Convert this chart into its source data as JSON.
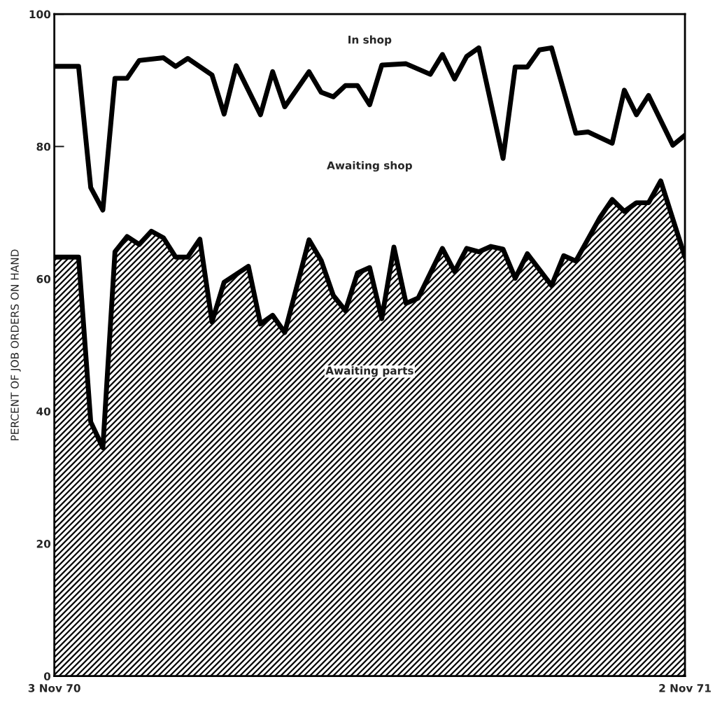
{
  "chart_data": {
    "type": "area",
    "ylabel": "PERCENT OF JOB ORDERS ON HAND",
    "xlim": [
      "1970-11-03",
      "1971-11-02"
    ],
    "xticks": [
      {
        "value": "1970-11-03",
        "label": "3 Nov 70"
      },
      {
        "value": "1971-11-02",
        "label": "2 Nov 71"
      }
    ],
    "ylim": [
      0,
      100
    ],
    "yticks": [
      0,
      20,
      40,
      60,
      80,
      100
    ],
    "grid": false,
    "legend": false,
    "annotations": [
      "In shop",
      "Awaiting shop"
    ],
    "series": [
      {
        "name": "Awaiting parts",
        "color": "#000000",
        "x": [
          "1970-11-03",
          "1970-11-17",
          "1970-11-24",
          "1970-12-01",
          "1970-12-08",
          "1970-12-15",
          "1970-12-22",
          "1970-12-29",
          "1971-01-05",
          "1971-01-12",
          "1971-01-19",
          "1971-01-26",
          "1971-02-02",
          "1971-02-09",
          "1971-02-23",
          "1971-03-02",
          "1971-03-09",
          "1971-03-16",
          "1971-03-30",
          "1971-04-06",
          "1971-04-13",
          "1971-04-20",
          "1971-04-27",
          "1971-05-04",
          "1971-05-11",
          "1971-05-18",
          "1971-05-25",
          "1971-06-01",
          "1971-06-15",
          "1971-06-22",
          "1971-06-29",
          "1971-07-06",
          "1971-07-13",
          "1971-07-20",
          "1971-07-27",
          "1971-08-03",
          "1971-08-17",
          "1971-08-24",
          "1971-08-31",
          "1971-09-14",
          "1971-09-21",
          "1971-09-28",
          "1971-10-05",
          "1971-10-12",
          "1971-10-19",
          "1971-11-02"
        ],
        "values": [
          63.3,
          63.3,
          38.4,
          34.5,
          64.1,
          66.4,
          65.2,
          67.2,
          66.2,
          63.3,
          63.3,
          66.0,
          53.5,
          59.5,
          61.9,
          53.2,
          54.5,
          51.9,
          65.9,
          62.8,
          57.5,
          55.2,
          60.9,
          61.7,
          54.0,
          64.8,
          56.3,
          57.1,
          64.6,
          61.1,
          64.6,
          64.1,
          64.9,
          64.5,
          60.1,
          63.8,
          59.0,
          63.5,
          62.7,
          69.3,
          72.0,
          70.2,
          71.5,
          71.5,
          74.8,
          63.3
        ]
      },
      {
        "type": "line",
        "color": "#000000",
        "x": [
          "1970-11-03",
          "1970-11-17",
          "1970-11-24",
          "1970-12-01",
          "1970-12-08",
          "1970-12-15",
          "1970-12-22",
          "1971-01-05",
          "1971-01-12",
          "1971-01-19",
          "1971-02-02",
          "1971-02-09",
          "1971-02-16",
          "1971-03-02",
          "1971-03-09",
          "1971-03-16",
          "1971-03-30",
          "1971-04-06",
          "1971-04-13",
          "1971-04-20",
          "1971-04-27",
          "1971-05-04",
          "1971-05-11",
          "1971-05-25",
          "1971-06-08",
          "1971-06-15",
          "1971-06-22",
          "1971-06-29",
          "1971-07-06",
          "1971-07-20",
          "1971-07-27",
          "1971-08-03",
          "1971-08-10",
          "1971-08-17",
          "1971-08-31",
          "1971-09-07",
          "1971-09-21",
          "1971-09-28",
          "1971-10-05",
          "1971-10-12",
          "1971-10-26",
          "1971-11-02"
        ],
        "values": [
          92.1,
          92.1,
          73.8,
          70.4,
          90.3,
          90.3,
          93.0,
          93.4,
          92.1,
          93.3,
          90.8,
          84.9,
          92.2,
          84.8,
          91.3,
          86.0,
          91.3,
          88.2,
          87.5,
          89.2,
          89.2,
          86.3,
          92.3,
          92.5,
          90.9,
          93.9,
          90.2,
          93.6,
          94.9,
          78.2,
          92.0,
          92.0,
          94.6,
          94.9,
          82.0,
          82.2,
          80.5,
          88.5,
          84.8,
          87.7,
          80.2,
          81.7
        ]
      }
    ]
  }
}
